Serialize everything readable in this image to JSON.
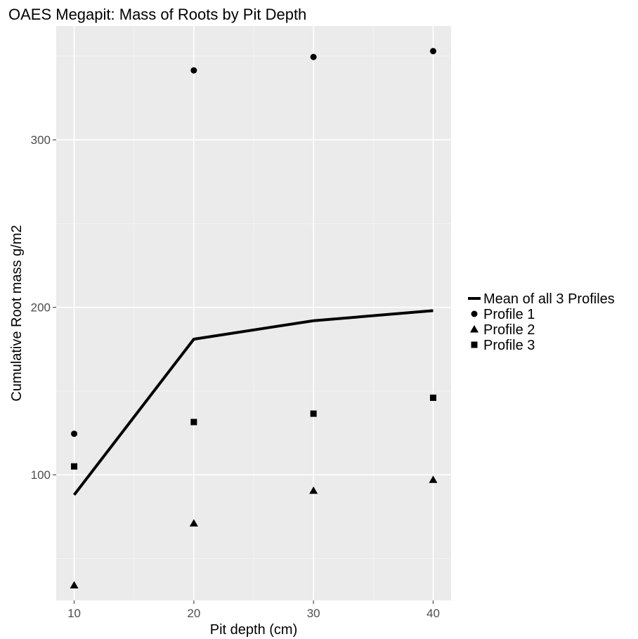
{
  "chart_data": {
    "type": "scatter",
    "title": "OAES Megapit: Mass of Roots by Pit Depth",
    "xlabel": "Pit depth (cm)",
    "ylabel": "Cumulative Root mass g/m2",
    "xlim": [
      8.5,
      41.5
    ],
    "ylim": [
      25,
      368
    ],
    "x_ticks": [
      10,
      20,
      30,
      40
    ],
    "y_ticks": [
      100,
      200,
      300
    ],
    "grid": true,
    "legend_position": "right",
    "background": "#ebebeb",
    "x": [
      10,
      20,
      30,
      40
    ],
    "series": [
      {
        "name": "Mean of all 3 Profiles",
        "type": "line",
        "values": [
          88,
          181,
          192,
          198
        ]
      },
      {
        "name": "Profile 1",
        "type": "scatter",
        "marker": "circle",
        "values": [
          124.5,
          341.5,
          349.5,
          353
        ]
      },
      {
        "name": "Profile 2",
        "type": "scatter",
        "marker": "triangle",
        "values": [
          34,
          71,
          90.5,
          97
        ]
      },
      {
        "name": "Profile 3",
        "type": "scatter",
        "marker": "square",
        "values": [
          105,
          131.5,
          136.5,
          146
        ]
      }
    ]
  }
}
